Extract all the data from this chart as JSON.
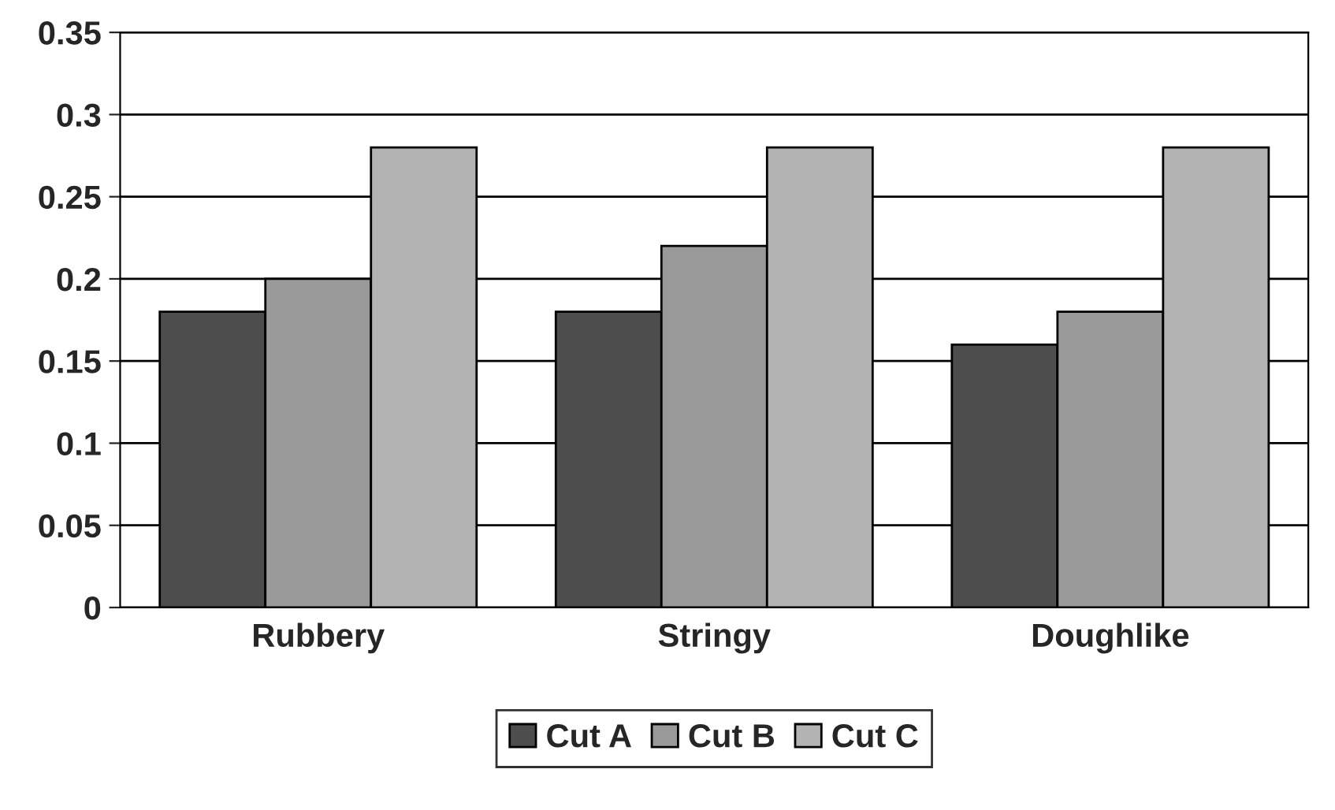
{
  "chart_data": {
    "type": "bar",
    "categories": [
      "Rubbery",
      "Stringy",
      "Doughlike"
    ],
    "series": [
      {
        "name": "Cut A",
        "color": "#4d4d4d",
        "values": [
          0.18,
          0.18,
          0.16
        ]
      },
      {
        "name": "Cut B",
        "color": "#999999",
        "values": [
          0.2,
          0.22,
          0.18
        ]
      },
      {
        "name": "Cut C",
        "color": "#b3b3b3",
        "values": [
          0.28,
          0.28,
          0.28
        ]
      }
    ],
    "ylim": [
      0,
      0.35
    ],
    "yticks": [
      0,
      0.05,
      0.1,
      0.15,
      0.2,
      0.25,
      0.3,
      0.35
    ],
    "grid": "y",
    "legend": "bottom"
  }
}
